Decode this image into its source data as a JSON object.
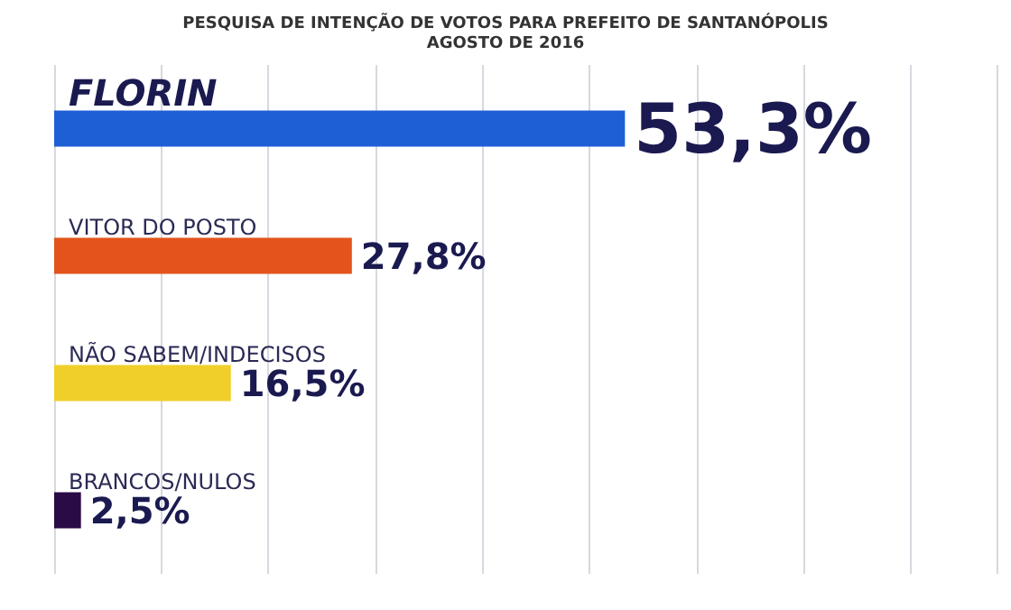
{
  "chart_data": {
    "type": "bar",
    "orientation": "horizontal",
    "title": "PESQUISA DE INTENÇÃO DE VOTOS PARA PREFEITO DE SANTANÓPOLIS",
    "subtitle": "AGOSTO DE 2016",
    "categories": [
      "FLORIN",
      "VITOR DO POSTO",
      "NÃO SABEM/INDECISOS",
      "BRANCOS/NULOS"
    ],
    "values": [
      53.3,
      27.8,
      16.5,
      2.5
    ],
    "colors": [
      "#1f5fd6",
      "#e2541c",
      "#f0cf2a",
      "#2a0b45"
    ],
    "value_labels": [
      "53,3%",
      "27,8%",
      "16,5%",
      "2,5%"
    ],
    "xlim": [
      0,
      88
    ],
    "grid": "x"
  }
}
